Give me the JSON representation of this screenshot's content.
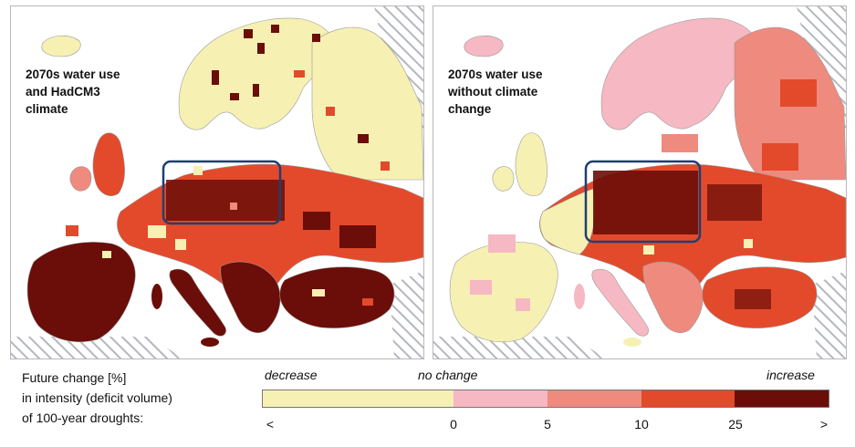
{
  "panels": [
    {
      "label_lines": [
        "2070s water use",
        "and HadCM3",
        "climate"
      ]
    },
    {
      "label_lines": [
        "2070s water use",
        "without climate",
        "change"
      ]
    }
  ],
  "legend": {
    "description_lines": [
      "Future change [%]",
      "in intensity (deficit volume)",
      "of 100-year droughts:"
    ],
    "scale_words": {
      "decrease": "decrease",
      "no_change": "no change",
      "increase": "increase"
    },
    "tick_labels": [
      "<",
      "0",
      "5",
      "10",
      "25",
      ">"
    ],
    "classes": [
      {
        "from": "<",
        "to": "0",
        "color": "#f6f1b3"
      },
      {
        "from": "0",
        "to": "5",
        "color": "#f6b8c2"
      },
      {
        "from": "5",
        "to": "10",
        "color": "#ef8a7f"
      },
      {
        "from": "10",
        "to": "25",
        "color": "#e34a2b"
      },
      {
        "from": "25",
        "to": ">",
        "color": "#6b0d08"
      }
    ]
  },
  "colors": {
    "sea": "#ffffff",
    "outside_area_hatch": "#b5b7bf",
    "region_highlight": "#1f3f72",
    "borders": "#9a9a9a"
  }
}
